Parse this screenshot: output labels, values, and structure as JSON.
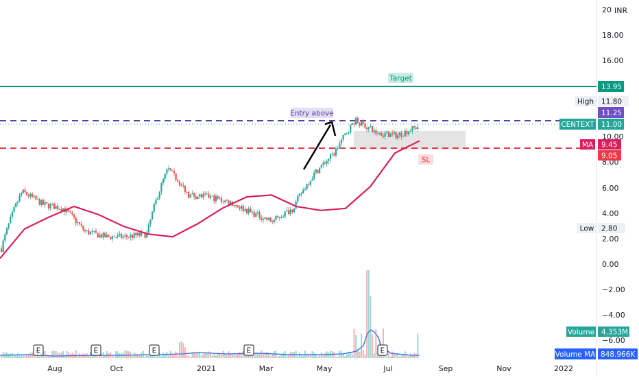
{
  "chart_data": {
    "type": "candlestick",
    "currency": "INR",
    "y_axis_ticks": [
      "20",
      "18.00",
      "16.00",
      "10.00",
      "8.00",
      "6.00",
      "4.00",
      "2.00",
      "0.00",
      "−2.00",
      "−4.00",
      "−6.00"
    ],
    "x_axis_ticks": [
      "Aug",
      "Oct",
      "2021",
      "Mar",
      "May",
      "Jul",
      "Sep",
      "Nov",
      "2022"
    ],
    "levels": {
      "target": {
        "label": "Target",
        "value": 13.95,
        "value_label": "13.95",
        "color": "#089981"
      },
      "entry": {
        "label": "Entry above",
        "value": 11.25,
        "value_label": "11.25",
        "color": "#5b3fa8"
      },
      "stop_loss": {
        "label": "SL",
        "value": 9.05,
        "value_label": "9.05",
        "color": "#f23645"
      }
    },
    "price_labels": {
      "high": {
        "name": "High",
        "value_label": "11.80",
        "value": 11.8
      },
      "last": {
        "name": "CENTEXT",
        "value_label": "11.00",
        "value": 11.0
      },
      "ma": {
        "name": "MA",
        "value_label": "9.45",
        "value": 9.45
      },
      "low": {
        "name": "Low",
        "value_label": "2.80",
        "value": 2.8
      }
    },
    "volume_labels": {
      "volume": {
        "name": "Volume",
        "value_label": "4.353M"
      },
      "volume_ma": {
        "name": "Volume MA",
        "value_label": "848.966K"
      }
    },
    "event_markers": [
      "E",
      "E",
      "E",
      "E",
      "E"
    ],
    "ma_series": {
      "name": "MA",
      "values": [
        2.7,
        3.7,
        4.2,
        4.7,
        4.3,
        3.8,
        3.5,
        3.4,
        3.9,
        4.6,
        5.2,
        5.3,
        4.7,
        4.5,
        4.6,
        5.8,
        8.3,
        9.45
      ]
    },
    "price_path": [
      3.0,
      5.5,
      4.8,
      4.6,
      3.6,
      3.4,
      3.4,
      3.5,
      7.0,
      5.3,
      5.2,
      4.9,
      4.4,
      4.0,
      4.6,
      6.6,
      8.3,
      11.8,
      10.3,
      10.0,
      11.0
    ],
    "colors": {
      "up": "#26a69a",
      "down": "#ef5350",
      "ma": "#d81e5b",
      "axis_text": "#131722"
    }
  }
}
